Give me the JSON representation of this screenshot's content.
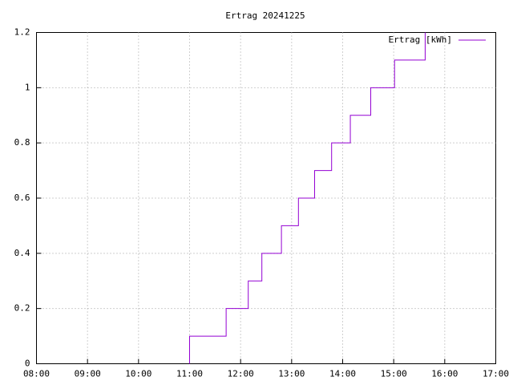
{
  "chart_data": {
    "type": "step",
    "title": "Ertrag 20241225",
    "x": [
      "11:00",
      "11:00",
      "11:43",
      "12:09",
      "12:25",
      "12:48",
      "13:08",
      "13:27",
      "13:47",
      "14:09",
      "14:33",
      "15:01",
      "15:37"
    ],
    "series": [
      {
        "name": "Ertrag [kWh]",
        "color": "#9400d3",
        "values": [
          0,
          0.1,
          0.2,
          0.3,
          0.4,
          0.5,
          0.6,
          0.7,
          0.8,
          0.9,
          1.0,
          1.1,
          1.2
        ]
      }
    ],
    "xlim": [
      "08:00",
      "17:00"
    ],
    "xticks": [
      "08:00",
      "09:00",
      "10:00",
      "11:00",
      "12:00",
      "13:00",
      "14:00",
      "15:00",
      "16:00",
      "17:00"
    ],
    "ylim": [
      0,
      1.2
    ],
    "yticks": [
      0,
      0.2,
      0.4,
      0.6,
      0.8,
      1,
      1.2
    ],
    "grid": true,
    "legend": "top-right"
  }
}
